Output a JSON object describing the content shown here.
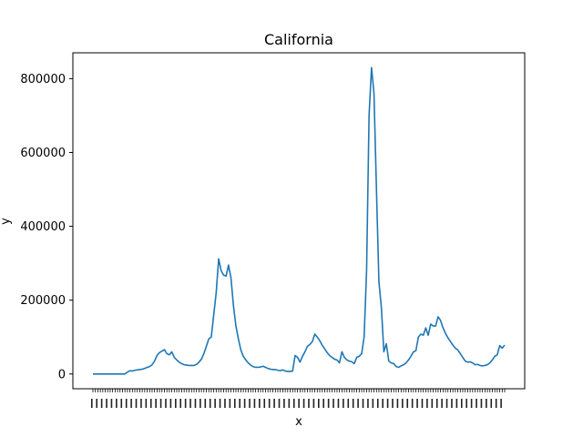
{
  "chart_data": {
    "type": "line",
    "title": "California",
    "xlabel": "x",
    "ylabel": "y",
    "ylim": [
      -40000,
      870000
    ],
    "yticks": [
      0,
      200000,
      400000,
      600000,
      800000
    ],
    "ytick_labels": [
      "0",
      "200000",
      "400000",
      "600000",
      "800000"
    ],
    "grid": false,
    "line_color": "#1f77b4",
    "series": [
      {
        "values": [
          0,
          0,
          0,
          0,
          0,
          0,
          0,
          0,
          0,
          0,
          0,
          0,
          0,
          0,
          5000,
          9000,
          8000,
          10000,
          11000,
          12000,
          13000,
          15000,
          18000,
          20000,
          25000,
          35000,
          50000,
          58000,
          62000,
          66000,
          55000,
          52000,
          60000,
          45000,
          38000,
          32000,
          28000,
          25000,
          24000,
          23000,
          23000,
          23000,
          26000,
          32000,
          40000,
          55000,
          75000,
          95000,
          100000,
          160000,
          220000,
          312000,
          280000,
          268000,
          265000,
          295000,
          260000,
          185000,
          130000,
          95000,
          65000,
          48000,
          38000,
          30000,
          24000,
          20000,
          18000,
          18000,
          19000,
          21000,
          18000,
          15000,
          13000,
          12000,
          12000,
          10000,
          9000,
          11000,
          8000,
          7000,
          7000,
          8000,
          50000,
          45000,
          32000,
          48000,
          60000,
          75000,
          80000,
          88000,
          108000,
          100000,
          90000,
          78000,
          68000,
          58000,
          50000,
          45000,
          40000,
          38000,
          30000,
          60000,
          45000,
          38000,
          35000,
          33000,
          28000,
          45000,
          48000,
          55000,
          100000,
          280000,
          700000,
          830000,
          760000,
          500000,
          250000,
          180000,
          60000,
          82000,
          35000,
          30000,
          28000,
          20000,
          18000,
          22000,
          25000,
          30000,
          38000,
          48000,
          60000,
          63000,
          100000,
          108000,
          105000,
          125000,
          105000,
          135000,
          130000,
          130000,
          155000,
          145000,
          125000,
          110000,
          98000,
          88000,
          78000,
          70000,
          65000,
          55000,
          45000,
          35000,
          32000,
          33000,
          30000,
          25000,
          26000,
          23000,
          22000,
          23000,
          25000,
          30000,
          38000,
          48000,
          52000,
          77000,
          70000,
          78000
        ]
      }
    ]
  }
}
